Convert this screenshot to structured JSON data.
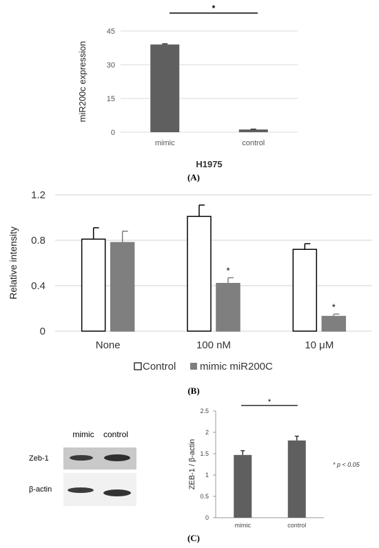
{
  "panels": {
    "a_label": "(A)",
    "b_label": "(B)",
    "c_label": "(C)"
  },
  "chart_data": [
    {
      "type": "bar",
      "panel": "A",
      "title": "H1975",
      "xlabel": "H1975",
      "ylabel": "miR200c expression",
      "categories": [
        "mimic",
        "control"
      ],
      "values": [
        39,
        1.2
      ],
      "errors": [
        0.3,
        0.15
      ],
      "ylim": [
        0,
        45
      ],
      "yticks": [
        0,
        15,
        30,
        45
      ],
      "grid": true,
      "bar_color": "#5f5f5f",
      "significance": "*"
    },
    {
      "type": "bar",
      "panel": "B",
      "ylabel": "Relative intensity",
      "categories": [
        "None",
        "100 nM",
        "10 μM"
      ],
      "series": [
        {
          "name": "Control",
          "values": [
            0.81,
            1.01,
            0.72
          ],
          "errors": [
            0.1,
            0.1,
            0.05
          ],
          "fill": "#ffffff",
          "stroke": "#000000"
        },
        {
          "name": "mimic miR200C",
          "values": [
            0.78,
            0.42,
            0.13
          ],
          "errors": [
            0.1,
            0.05,
            0.02
          ],
          "fill": "#7f7f7f",
          "stroke": "#7f7f7f"
        }
      ],
      "star_labels": [
        "",
        "",
        "",
        "*",
        "",
        "*"
      ],
      "ylim": [
        0,
        1.2
      ],
      "yticks": [
        "0",
        "0.4",
        "0.8",
        "1.2"
      ],
      "grid": true,
      "legend_position": "bottom"
    },
    {
      "type": "bar",
      "panel": "C",
      "ylabel": "ZEB-1 / β-actin",
      "categories": [
        "mimic",
        "control"
      ],
      "values": [
        1.47,
        1.81
      ],
      "errors": [
        0.1,
        0.1
      ],
      "ylim": [
        0,
        2.5
      ],
      "yticks": [
        "0",
        "0.5",
        "1",
        "1.5",
        "2",
        "2.5"
      ],
      "grid": false,
      "bar_color": "#5f5f5f",
      "significance": "*",
      "note": "* p < 0.05"
    }
  ],
  "blot": {
    "lane_labels": [
      "mimic",
      "control"
    ],
    "row_labels": [
      "Zeb-1",
      "β-actin"
    ]
  }
}
